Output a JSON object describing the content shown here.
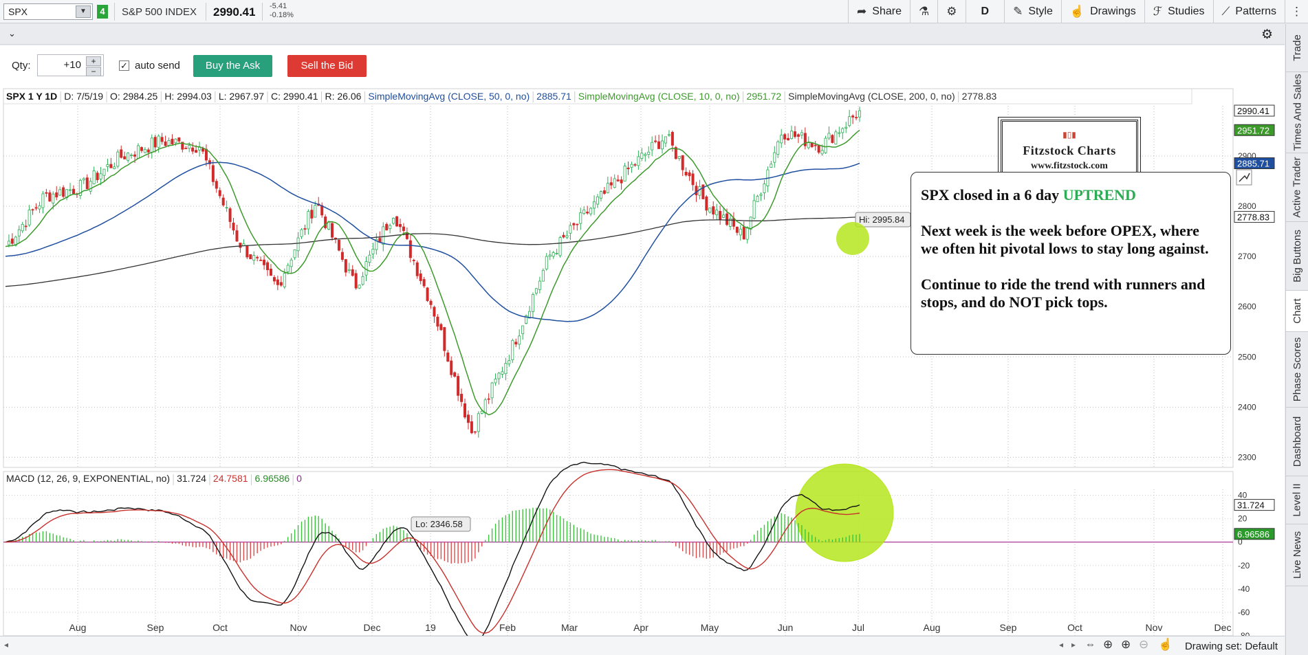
{
  "toolbar": {
    "symbol": "SPX",
    "link_group": "4",
    "index_name": "S&P 500 INDEX",
    "last_price": "2990.41",
    "net_change": "-5.41",
    "pct_change": "-0.18%",
    "share_label": "Share",
    "aggregation": "D",
    "style_label": "Style",
    "drawings_label": "Drawings",
    "studies_label": "Studies",
    "patterns_label": "Patterns"
  },
  "trade": {
    "qty_label": "Qty:",
    "qty_value": "+10",
    "autosend_label": "auto send",
    "buy_label": "Buy the Ask",
    "sell_label": "Sell the Bid"
  },
  "chart_header": {
    "title": "SPX 1 Y 1D",
    "date": "D: 7/5/19",
    "open": "O: 2984.25",
    "high": "H: 2994.03",
    "low": "L: 2967.97",
    "close": "C: 2990.41",
    "range": "R: 26.06",
    "sma50_label": "SimpleMovingAvg (CLOSE, 50, 0, no)",
    "sma50_value": "2885.71",
    "sma10_label": "SimpleMovingAvg (CLOSE, 10, 0, no)",
    "sma10_value": "2951.72",
    "sma200_label": "SimpleMovingAvg (CLOSE, 200, 0, no)",
    "sma200_value": "2778.83"
  },
  "macd_header": {
    "label": "MACD (12, 26, 9, EXPONENTIAL, no)",
    "value": "31.724",
    "avg": "24.7581",
    "diff": "6.96586",
    "zero": "0"
  },
  "annotations": {
    "hi": "Hi: 2995.84",
    "lo": "Lo: 2346.58"
  },
  "note": {
    "line1_prefix": "SPX closed in a 6 day",
    "line1_emph": "UPTREND",
    "para2": "Next week is the week before OPEX, where we often hit pivotal lows to stay long against.",
    "para3": "Continue to ride the trend with runners and stops, and do NOT pick tops."
  },
  "logo": {
    "name": "Fitzstock Charts",
    "url": "www.fitzstock.com"
  },
  "right_rail": [
    "Trade",
    "Times And Sales",
    "Active Trader",
    "Big Buttons",
    "Chart",
    "Phase Scores",
    "Dashboard",
    "Level II",
    "Live News"
  ],
  "bottom": {
    "drawing_set": "Drawing set: Default"
  },
  "colors": {
    "up": "#2cad55",
    "down": "#d12a2a",
    "sma10": "#3c9a2b",
    "sma50": "#1f4fa0",
    "sma200": "#333333",
    "macd_line": "#111111",
    "macd_avg": "#c8302c",
    "highlight": "#b5e61d"
  },
  "chart_data": [
    {
      "type": "candlestick",
      "title": "SPX 1 Y 1D",
      "x_ticks": [
        "Aug",
        "Sep",
        "Oct",
        "Nov",
        "Dec",
        "19",
        "Feb",
        "Mar",
        "Apr",
        "May",
        "Jun",
        "Jul",
        "Aug",
        "Sep",
        "Oct",
        "Nov",
        "Dec"
      ],
      "y_ticks": [
        2300,
        2400,
        2500,
        2600,
        2700,
        2800,
        2900
      ],
      "ylim": [
        2280,
        3000
      ],
      "price_tags": [
        {
          "label": "2990.41",
          "value": 2990.41,
          "color": "#333333"
        },
        {
          "label": "2951.72",
          "value": 2951.72,
          "color": "#3c9a2b"
        },
        {
          "label": "2885.71",
          "value": 2885.71,
          "color": "#1f4fa0"
        },
        {
          "label": "2778.83",
          "value": 2778.83,
          "color": "#333333"
        }
      ],
      "close_path": [
        [
          "Jul 2018",
          2720
        ],
        [
          "Aug 2018",
          2820
        ],
        [
          "Aug 15",
          2840
        ],
        [
          "Sep 2018",
          2900
        ],
        [
          "Sep 21",
          2930
        ],
        [
          "Oct 2018",
          2920
        ],
        [
          "Oct 11",
          2730
        ],
        [
          "Oct 29",
          2640
        ],
        [
          "Nov 7",
          2810
        ],
        [
          "Nov 23",
          2640
        ],
        [
          "Dec 3",
          2790
        ],
        [
          "Dec 14",
          2600
        ],
        [
          "Dec 24",
          2350
        ],
        [
          "Jan 2019",
          2510
        ],
        [
          "Feb 2019",
          2700
        ],
        [
          "Mar 2019",
          2790
        ],
        [
          "Apr 2019",
          2870
        ],
        [
          "May 2019",
          2940
        ],
        [
          "May 13",
          2810
        ],
        [
          "Jun 3",
          2740
        ],
        [
          "Jun 20",
          2950
        ],
        [
          "Jun 27",
          2920
        ],
        [
          "Jul 5",
          2990
        ]
      ],
      "series": [
        {
          "name": "SimpleMovingAvg (CLOSE, 10, 0, no)",
          "last": 2951.72
        },
        {
          "name": "SimpleMovingAvg (CLOSE, 50, 0, no)",
          "last": 2885.71
        },
        {
          "name": "SimpleMovingAvg (CLOSE, 200, 0, no)",
          "last": 2778.83
        }
      ]
    },
    {
      "type": "line",
      "title": "MACD (12, 26, 9, EXPONENTIAL, no)",
      "y_ticks": [
        40,
        20,
        0,
        -20,
        -40,
        -60,
        -80
      ],
      "ylim": [
        -80,
        45
      ],
      "price_tags": [
        {
          "label": "31.724",
          "value": 31.724,
          "color": "#333333"
        },
        {
          "label": "6.96586",
          "value": 6.96586,
          "color": "#2a9a2a"
        }
      ],
      "series": [
        {
          "name": "MACD",
          "last": 31.724
        },
        {
          "name": "Avg",
          "last": 24.7581
        },
        {
          "name": "Diff",
          "last": 6.96586
        }
      ]
    }
  ]
}
